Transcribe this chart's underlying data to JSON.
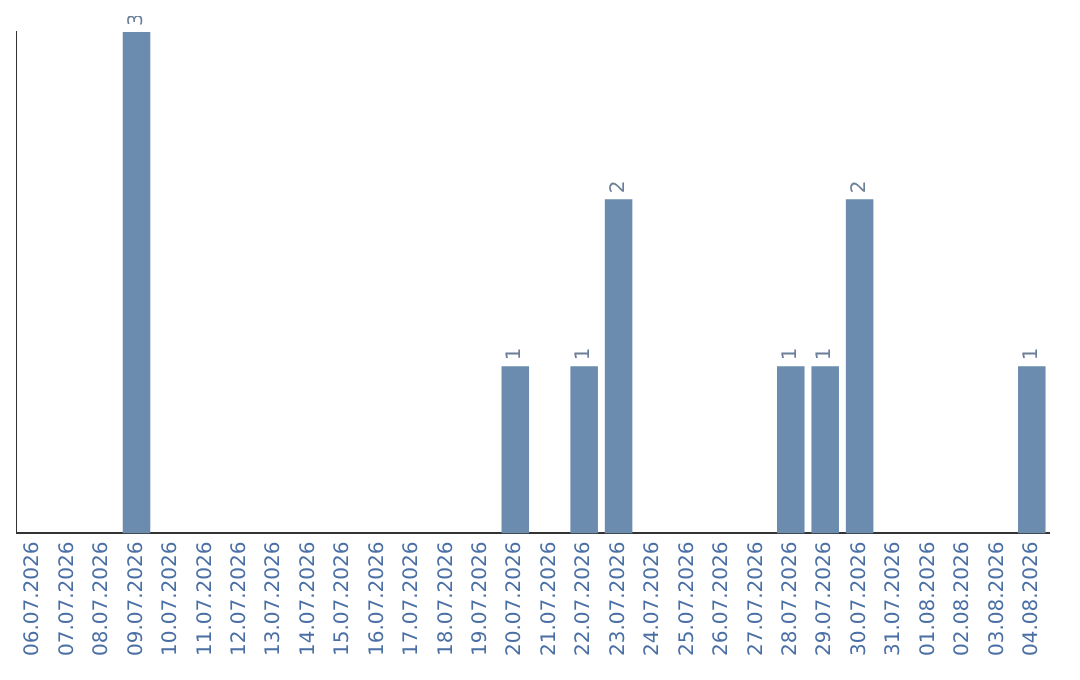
{
  "chart_data": {
    "type": "bar",
    "categories": [
      "06.07.2026",
      "07.07.2026",
      "08.07.2026",
      "09.07.2026",
      "10.07.2026",
      "11.07.2026",
      "12.07.2026",
      "13.07.2026",
      "14.07.2026",
      "15.07.2026",
      "16.07.2026",
      "17.07.2026",
      "18.07.2026",
      "19.07.2026",
      "20.07.2026",
      "21.07.2026",
      "22.07.2026",
      "23.07.2026",
      "24.07.2026",
      "25.07.2026",
      "26.07.2026",
      "27.07.2026",
      "28.07.2026",
      "29.07.2026",
      "30.07.2026",
      "31.07.2026",
      "01.08.2026",
      "02.08.2026",
      "03.08.2026",
      "04.08.2026"
    ],
    "values": [
      0,
      0,
      0,
      3,
      0,
      0,
      0,
      0,
      0,
      0,
      0,
      0,
      0,
      0,
      1,
      0,
      1,
      2,
      0,
      0,
      0,
      0,
      1,
      1,
      2,
      0,
      0,
      0,
      0,
      1
    ],
    "value_labels": [
      null,
      null,
      null,
      "3",
      null,
      null,
      null,
      null,
      null,
      null,
      null,
      null,
      null,
      null,
      "1",
      null,
      "1",
      "2",
      null,
      null,
      null,
      null,
      "1",
      "1",
      "2",
      null,
      null,
      null,
      null,
      "1"
    ],
    "color": "#6b8cae",
    "grid": false,
    "tick_labels": "x"
  }
}
